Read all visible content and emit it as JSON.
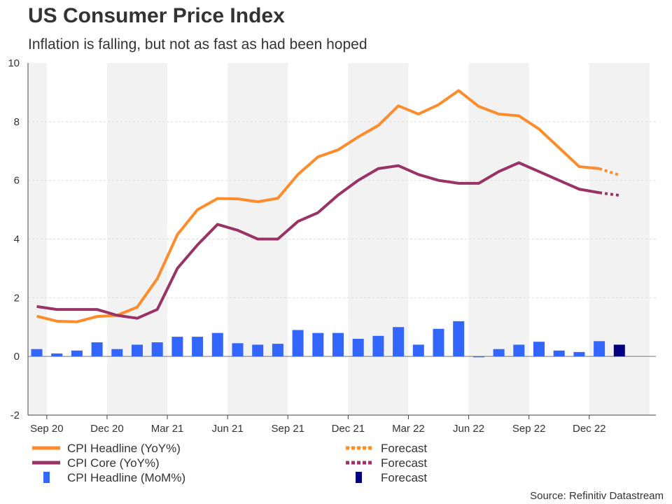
{
  "chart_data": {
    "type": "bar+line",
    "title": "US Consumer Price Index",
    "subtitle": "Inflation is falling, but not as fast as had been hoped",
    "source": "Source: Refinitiv Datastream",
    "ylim": [
      -2,
      10
    ],
    "yticks": [
      -2,
      0,
      2,
      4,
      6,
      8,
      10
    ],
    "grid": true,
    "x_tick_labels": [
      "Sep 20",
      "Dec 20",
      "Mar 21",
      "Jun 21",
      "Sep 21",
      "Dec 21",
      "Mar 22",
      "Jun 22",
      "Sep 22",
      "Dec 22"
    ],
    "months": [
      "Aug 20",
      "Sep 20",
      "Oct 20",
      "Nov 20",
      "Dec 20",
      "Jan 21",
      "Feb 21",
      "Mar 21",
      "Apr 21",
      "May 21",
      "Jun 21",
      "Jul 21",
      "Aug 21",
      "Sep 21",
      "Oct 21",
      "Nov 21",
      "Dec 21",
      "Jan 22",
      "Feb 22",
      "Mar 22",
      "Apr 22",
      "May 22",
      "Jun 22",
      "Jul 22",
      "Aug 22",
      "Sep 22",
      "Oct 22",
      "Nov 22",
      "Dec 22",
      "Jan 23"
    ],
    "series": [
      {
        "name": "CPI Headline (YoY%)",
        "kind": "line",
        "color": "#ff8c2b",
        "values": [
          1.37,
          1.2,
          1.18,
          1.36,
          1.4,
          1.68,
          2.65,
          4.15,
          5.0,
          5.38,
          5.37,
          5.27,
          5.39,
          6.2,
          6.8,
          7.04,
          7.48,
          7.87,
          8.54,
          8.26,
          8.58,
          9.06,
          8.52,
          8.26,
          8.2,
          7.75,
          7.11,
          6.47,
          6.4,
          6.18
        ],
        "forecast_from_index": 28
      },
      {
        "name": "CPI Core (YoY%)",
        "kind": "line",
        "color": "#993366",
        "values": [
          1.7,
          1.6,
          1.6,
          1.6,
          1.4,
          1.3,
          1.6,
          3.0,
          3.8,
          4.5,
          4.3,
          4.0,
          4.0,
          4.6,
          4.9,
          5.5,
          6.0,
          6.4,
          6.5,
          6.2,
          6.0,
          5.9,
          5.9,
          6.3,
          6.6,
          6.3,
          6.0,
          5.7,
          5.58,
          5.49
        ],
        "forecast_from_index": 28
      },
      {
        "name": "CPI Headline (MoM%)",
        "kind": "bar",
        "color": "#3366ff",
        "forecast_color": "#000080",
        "values": [
          0.25,
          0.1,
          0.2,
          0.48,
          0.25,
          0.4,
          0.48,
          0.67,
          0.67,
          0.8,
          0.45,
          0.4,
          0.43,
          0.9,
          0.8,
          0.8,
          0.6,
          0.7,
          1.0,
          0.4,
          0.94,
          1.2,
          -0.03,
          0.25,
          0.4,
          0.5,
          0.2,
          0.15,
          0.52,
          0.4
        ],
        "forecast_from_index": 29
      }
    ],
    "legend": [
      {
        "label": "CPI Headline (YoY%)",
        "color": "#ff8c2b",
        "style": "line"
      },
      {
        "label": "Forecast",
        "color": "#ff8c2b",
        "style": "dotted"
      },
      {
        "label": "CPI Core (YoY%)",
        "color": "#993366",
        "style": "line"
      },
      {
        "label": "Forecast",
        "color": "#993366",
        "style": "dotted"
      },
      {
        "label": "CPI Headline (MoM%)",
        "color": "#3366ff",
        "style": "box"
      },
      {
        "label": "Forecast",
        "color": "#000080",
        "style": "box"
      }
    ],
    "legend_placement": "bottom"
  }
}
